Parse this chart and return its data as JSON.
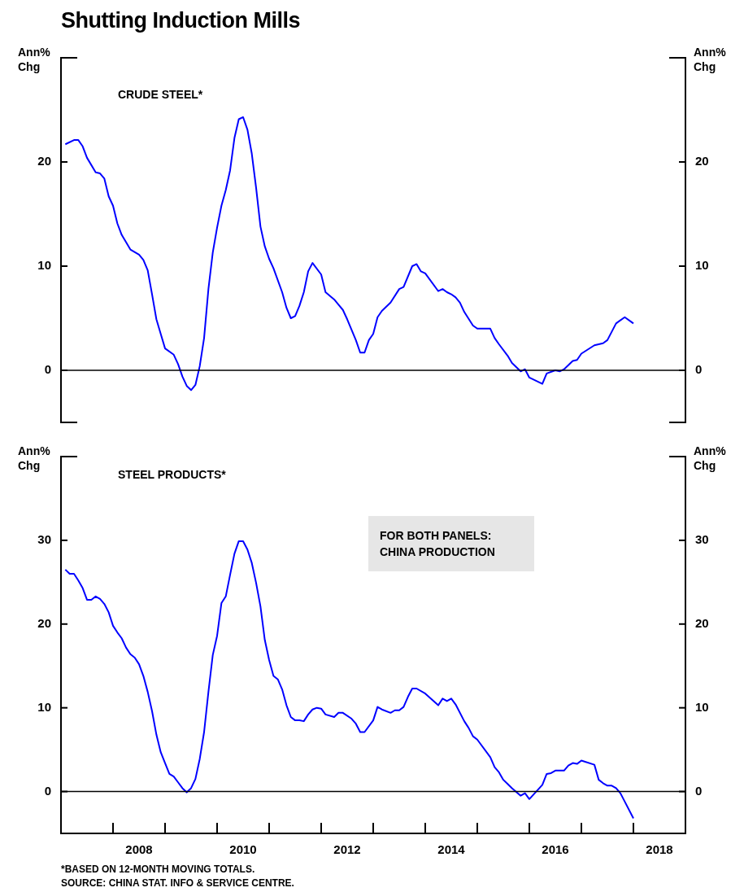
{
  "chart_data": [
    {
      "type": "line",
      "title": "Shutting Induction Mills",
      "ylabel": "Ann% Chg",
      "y2label": "Ann% Chg",
      "annotations": [
        "CRUDE STEEL*"
      ],
      "xlim": [
        "2007-01",
        "2019-01"
      ],
      "ylim": [
        -5,
        30
      ],
      "yticks": [
        0,
        10,
        20
      ],
      "y2lim": [
        -5,
        30
      ],
      "y2ticks": [
        0,
        10,
        20
      ],
      "tick_labels": "y",
      "ref_lines": [
        {
          "axis": "y",
          "value": 0,
          "color": "#000000"
        }
      ],
      "series": [
        {
          "color": "#0000ff",
          "x": [
            "2007-02",
            "2007-04",
            "2007-05",
            "2007-06",
            "2007-07",
            "2007-09",
            "2007-10",
            "2007-11",
            "2007-12",
            "2008-01",
            "2008-02",
            "2008-03",
            "2008-05",
            "2008-07",
            "2008-08",
            "2008-09",
            "2008-10",
            "2008-11",
            "2008-12",
            "2009-01",
            "2009-03",
            "2009-04",
            "2009-05",
            "2009-06",
            "2009-07",
            "2009-08",
            "2009-09",
            "2009-10",
            "2009-11",
            "2009-12",
            "2010-01",
            "2010-02",
            "2010-03",
            "2010-04",
            "2010-05",
            "2010-06",
            "2010-07",
            "2010-08",
            "2010-09",
            "2010-10",
            "2010-11",
            "2010-12",
            "2011-01",
            "2011-02",
            "2011-04",
            "2011-05",
            "2011-06",
            "2011-07",
            "2011-08",
            "2011-09",
            "2011-10",
            "2011-11",
            "2012-01",
            "2012-02",
            "2012-04",
            "2012-05",
            "2012-06",
            "2012-07",
            "2012-08",
            "2012-09",
            "2012-10",
            "2012-11",
            "2012-12",
            "2013-01",
            "2013-02",
            "2013-03",
            "2013-05",
            "2013-07",
            "2013-08",
            "2013-10",
            "2013-11",
            "2013-12",
            "2014-01",
            "2014-04",
            "2014-05",
            "2014-06",
            "2014-07",
            "2014-08",
            "2014-09",
            "2014-10",
            "2014-12",
            "2015-01",
            "2015-04",
            "2015-05",
            "2015-06",
            "2015-08",
            "2015-09",
            "2015-11",
            "2015-12",
            "2016-01",
            "2016-04",
            "2016-05",
            "2016-07",
            "2016-08",
            "2016-09",
            "2016-11",
            "2016-12",
            "2017-01",
            "2017-04",
            "2017-06",
            "2017-07",
            "2017-08",
            "2017-09",
            "2017-11",
            "2018-01"
          ],
          "values": [
            21.7,
            22.1,
            22.1,
            21.5,
            20.4,
            19.0,
            18.9,
            18.4,
            16.7,
            15.8,
            14.1,
            13.0,
            11.6,
            11.1,
            10.6,
            9.6,
            7.3,
            4.9,
            3.5,
            2.1,
            1.5,
            0.6,
            -0.6,
            -1.5,
            -1.9,
            -1.4,
            0.4,
            3.1,
            7.8,
            11.3,
            13.7,
            15.8,
            17.3,
            19.2,
            22.3,
            24.1,
            24.3,
            23.1,
            20.8,
            17.5,
            13.8,
            11.9,
            10.7,
            9.8,
            7.5,
            6.0,
            5.0,
            5.2,
            6.2,
            7.5,
            9.5,
            10.3,
            9.2,
            7.5,
            6.8,
            6.3,
            5.8,
            4.9,
            3.9,
            2.9,
            1.7,
            1.7,
            2.9,
            3.5,
            5.1,
            5.7,
            6.5,
            7.8,
            8.0,
            10.0,
            10.2,
            9.5,
            9.3,
            7.6,
            7.8,
            7.5,
            7.3,
            7.0,
            6.5,
            5.6,
            4.3,
            4.0,
            4.0,
            3.1,
            2.5,
            1.4,
            0.7,
            -0.1,
            0.1,
            -0.7,
            -1.3,
            -0.3,
            0.0,
            -0.1,
            0.1,
            0.9,
            1.0,
            1.6,
            2.4,
            2.6,
            2.9,
            3.7,
            4.5,
            5.1,
            4.5
          ]
        }
      ]
    },
    {
      "type": "line",
      "ylabel": "Ann% Chg",
      "y2label": "Ann% Chg",
      "annotations": [
        "STEEL PRODUCTS*",
        "FOR BOTH PANELS: CHINA PRODUCTION",
        "*BASED ON 12-MONTH MOVING TOTALS.",
        "SOURCE: CHINA STAT. INFO & SERVICE CENTRE."
      ],
      "xlim": [
        "2007-01",
        "2019-01"
      ],
      "xticks": [
        {
          "value": "2008-01",
          "label": null
        },
        {
          "value": "2008-07",
          "label": "2008"
        },
        {
          "value": "2009-01",
          "label": null
        },
        {
          "value": "2010-01",
          "label": null
        },
        {
          "value": "2010-07",
          "label": "2010"
        },
        {
          "value": "2011-01",
          "label": null
        },
        {
          "value": "2012-01",
          "label": null
        },
        {
          "value": "2012-07",
          "label": "2012"
        },
        {
          "value": "2013-01",
          "label": null
        },
        {
          "value": "2014-01",
          "label": null
        },
        {
          "value": "2014-07",
          "label": "2014"
        },
        {
          "value": "2015-01",
          "label": null
        },
        {
          "value": "2016-01",
          "label": null
        },
        {
          "value": "2016-07",
          "label": "2016"
        },
        {
          "value": "2017-01",
          "label": null
        },
        {
          "value": "2018-01",
          "label": null
        },
        {
          "value": "2018-07",
          "label": "2018"
        }
      ],
      "ylim": [
        -5,
        40
      ],
      "yticks": [
        0,
        10,
        20,
        30
      ],
      "y2lim": [
        -5,
        40
      ],
      "y2ticks": [
        0,
        10,
        20,
        30
      ],
      "ref_lines": [
        {
          "axis": "y",
          "value": 0,
          "color": "#000000"
        }
      ],
      "series": [
        {
          "color": "#0000ff",
          "x": [
            "2007-02",
            "2007-03",
            "2007-04",
            "2007-05",
            "2007-06",
            "2007-07",
            "2007-08",
            "2007-09",
            "2007-10",
            "2007-11",
            "2007-12",
            "2008-01",
            "2008-02",
            "2008-03",
            "2008-04",
            "2008-05",
            "2008-06",
            "2008-07",
            "2008-08",
            "2008-09",
            "2008-10",
            "2008-11",
            "2008-12",
            "2009-01",
            "2009-02",
            "2009-03",
            "2009-04",
            "2009-05",
            "2009-06",
            "2009-07",
            "2009-08",
            "2009-09",
            "2009-10",
            "2009-11",
            "2009-12",
            "2010-01",
            "2010-02",
            "2010-03",
            "2010-04",
            "2010-05",
            "2010-06",
            "2010-07",
            "2010-08",
            "2010-09",
            "2010-10",
            "2010-11",
            "2010-12",
            "2011-01",
            "2011-02",
            "2011-03",
            "2011-04",
            "2011-05",
            "2011-06",
            "2011-07",
            "2011-08",
            "2011-09",
            "2011-10",
            "2011-11",
            "2011-12",
            "2012-01",
            "2012-02",
            "2012-04",
            "2012-05",
            "2012-06",
            "2012-08",
            "2012-09",
            "2012-10",
            "2012-11",
            "2013-01",
            "2013-02",
            "2013-03",
            "2013-05",
            "2013-06",
            "2013-07",
            "2013-08",
            "2013-09",
            "2013-10",
            "2013-11",
            "2014-01",
            "2014-04",
            "2014-05",
            "2014-06",
            "2014-07",
            "2014-08",
            "2014-10",
            "2014-11",
            "2014-12",
            "2015-01",
            "2015-04",
            "2015-05",
            "2015-06",
            "2015-07",
            "2015-08",
            "2015-09",
            "2015-11",
            "2015-12",
            "2016-01",
            "2016-04",
            "2016-05",
            "2016-06",
            "2016-07",
            "2016-09",
            "2016-10",
            "2016-11",
            "2016-12",
            "2017-01",
            "2017-04",
            "2017-05",
            "2017-06",
            "2017-07",
            "2017-08",
            "2017-09",
            "2017-10",
            "2017-11",
            "2018-01"
          ],
          "values": [
            26.5,
            26.0,
            26.0,
            25.2,
            24.3,
            22.9,
            22.9,
            23.3,
            23.0,
            22.4,
            21.4,
            19.8,
            19.0,
            18.3,
            17.2,
            16.4,
            16.0,
            15.2,
            13.8,
            11.9,
            9.6,
            6.8,
            4.7,
            3.4,
            2.1,
            1.8,
            1.1,
            0.4,
            -0.1,
            0.4,
            1.5,
            3.9,
            7.1,
            11.9,
            16.3,
            18.6,
            22.5,
            23.3,
            25.9,
            28.4,
            29.9,
            29.9,
            28.9,
            27.3,
            24.9,
            22.1,
            18.1,
            15.7,
            13.8,
            13.4,
            12.2,
            10.3,
            8.9,
            8.5,
            8.5,
            8.4,
            9.2,
            9.8,
            10.0,
            9.9,
            9.2,
            8.9,
            9.4,
            9.4,
            8.7,
            8.1,
            7.1,
            7.1,
            8.5,
            10.1,
            9.8,
            9.4,
            9.7,
            9.7,
            10.1,
            11.3,
            12.3,
            12.3,
            11.7,
            10.3,
            11.1,
            10.8,
            11.1,
            10.4,
            8.4,
            7.6,
            6.6,
            6.2,
            4.1,
            2.9,
            2.3,
            1.4,
            0.9,
            0.4,
            -0.5,
            -0.2,
            -0.9,
            0.8,
            2.1,
            2.2,
            2.5,
            2.5,
            3.1,
            3.4,
            3.3,
            3.7,
            3.2,
            1.4,
            1.0,
            0.7,
            0.7,
            0.4,
            -0.2,
            -1.2,
            -3.2
          ]
        }
      ]
    }
  ]
}
